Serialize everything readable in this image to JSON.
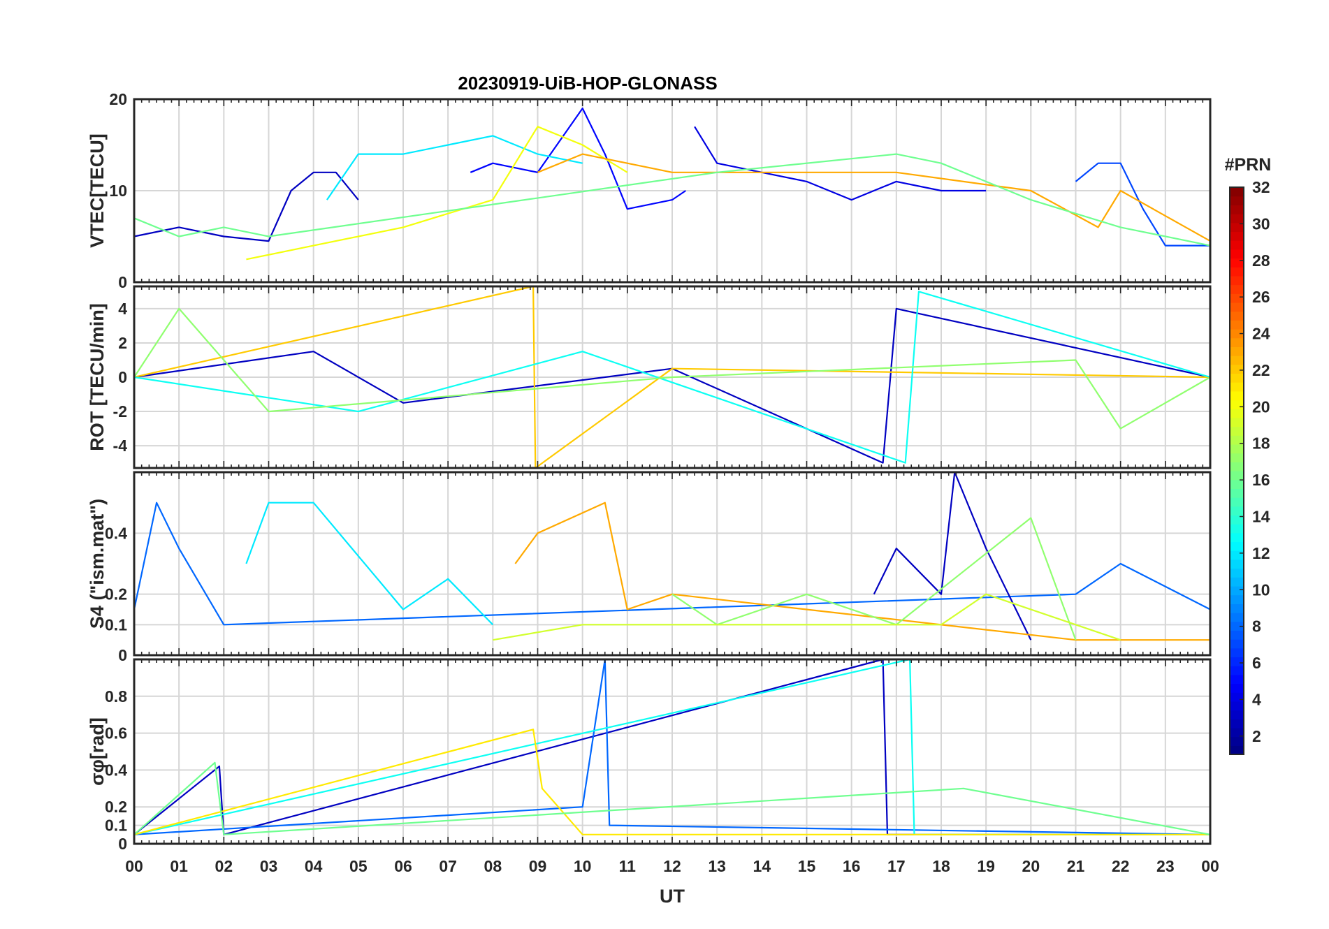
{
  "figure": {
    "title": "20230919-UiB-HOP-GLONASS",
    "xlabel": "UT",
    "x_tick_labels": [
      "00",
      "01",
      "02",
      "03",
      "04",
      "05",
      "06",
      "07",
      "08",
      "09",
      "10",
      "11",
      "12",
      "13",
      "14",
      "15",
      "16",
      "17",
      "18",
      "19",
      "20",
      "21",
      "22",
      "23",
      "00"
    ]
  },
  "colorbar": {
    "title": "#PRN",
    "colormap": "jet",
    "range": [
      1,
      32
    ],
    "tick_labels": [
      "2",
      "4",
      "6",
      "8",
      "10",
      "12",
      "14",
      "16",
      "18",
      "20",
      "22",
      "24",
      "26",
      "28",
      "30",
      "32"
    ]
  },
  "chart_data": [
    {
      "type": "line",
      "panel": "VTEC",
      "ylabel": "VTEC[TECU]",
      "ylim": [
        0,
        20
      ],
      "y_tick_labels": [
        "0",
        "10",
        "20"
      ],
      "x_range_hours": [
        0,
        24
      ],
      "grid": true,
      "series": [
        {
          "prn": 3,
          "points": [
            [
              0,
              5
            ],
            [
              1,
              6
            ],
            [
              2,
              5
            ],
            [
              3,
              4.5
            ],
            [
              3.5,
              10
            ],
            [
              4,
              12
            ],
            [
              4.5,
              12
            ],
            [
              5,
              9
            ]
          ]
        },
        {
          "prn": 5,
          "points": [
            [
              7.5,
              12
            ],
            [
              8,
              13
            ],
            [
              9,
              12
            ],
            [
              10,
              19
            ],
            [
              10.5,
              14
            ],
            [
              11,
              8
            ],
            [
              12,
              9
            ],
            [
              12.3,
              10
            ]
          ]
        },
        {
          "prn": 4,
          "points": [
            [
              12.5,
              17
            ],
            [
              13,
              13
            ],
            [
              14,
              12
            ],
            [
              15,
              11
            ],
            [
              16,
              9
            ],
            [
              17,
              11
            ],
            [
              18,
              10
            ],
            [
              19,
              10
            ]
          ]
        },
        {
          "prn": 7,
          "points": [
            [
              21,
              11
            ],
            [
              21.5,
              13
            ],
            [
              22,
              13
            ],
            [
              22.5,
              8
            ],
            [
              23,
              4
            ],
            [
              24,
              4
            ]
          ]
        },
        {
          "prn": 12,
          "points": [
            [
              4.3,
              9
            ],
            [
              5,
              14
            ],
            [
              6,
              14
            ],
            [
              7,
              15
            ],
            [
              8,
              16
            ],
            [
              9,
              14
            ],
            [
              10,
              13
            ]
          ]
        },
        {
          "prn": 20,
          "points": [
            [
              2.5,
              2.5
            ],
            [
              4,
              4
            ],
            [
              6,
              6
            ],
            [
              8,
              9
            ],
            [
              9,
              17
            ],
            [
              10,
              15
            ],
            [
              11,
              12
            ]
          ]
        },
        {
          "prn": 23,
          "points": [
            [
              9,
              12
            ],
            [
              10,
              14
            ],
            [
              11,
              13
            ],
            [
              12,
              12
            ],
            [
              17,
              12
            ],
            [
              20,
              10
            ],
            [
              21.5,
              6
            ],
            [
              22,
              10
            ],
            [
              24,
              4.5
            ]
          ]
        },
        {
          "prn": 16,
          "points": [
            [
              0,
              7
            ],
            [
              1,
              5
            ],
            [
              2,
              6
            ],
            [
              3,
              5
            ],
            [
              13,
              12
            ],
            [
              17,
              14
            ],
            [
              18,
              13
            ],
            [
              19,
              11
            ],
            [
              20,
              9
            ],
            [
              22,
              6
            ],
            [
              24,
              4
            ]
          ]
        }
      ]
    },
    {
      "type": "line",
      "panel": "ROT",
      "ylabel": "ROT [TECU/min]",
      "ylim": [
        -5.3,
        5.3
      ],
      "y_tick_labels": [
        "-4",
        "-2",
        "0",
        "2",
        "4"
      ],
      "x_range_hours": [
        0,
        24
      ],
      "grid": true,
      "series": [
        {
          "prn": 3,
          "points": [
            [
              0,
              0
            ],
            [
              4,
              1.5
            ],
            [
              6,
              -1.5
            ],
            [
              12,
              0.5
            ],
            [
              16.7,
              -5
            ],
            [
              17,
              4
            ],
            [
              24,
              0
            ]
          ]
        },
        {
          "prn": 22,
          "points": [
            [
              0,
              0
            ],
            [
              8.9,
              5.3
            ],
            [
              8.95,
              -5.3
            ],
            [
              12,
              0.5
            ],
            [
              24,
              0
            ]
          ]
        },
        {
          "prn": 13,
          "points": [
            [
              0,
              0
            ],
            [
              5,
              -2
            ],
            [
              10,
              1.5
            ],
            [
              17.2,
              -5
            ],
            [
              17.5,
              5
            ],
            [
              24,
              0
            ]
          ]
        },
        {
          "prn": 17,
          "points": [
            [
              0,
              0
            ],
            [
              1,
              4
            ],
            [
              3,
              -2
            ],
            [
              12,
              0
            ],
            [
              21,
              1
            ],
            [
              22,
              -3
            ],
            [
              24,
              0
            ]
          ]
        }
      ]
    },
    {
      "type": "line",
      "panel": "S4",
      "ylabel": "S4 (\"ism.mat\")",
      "ylim": [
        0,
        0.6
      ],
      "y_tick_labels": [
        "0",
        "0.1",
        "0.2",
        "0.4"
      ],
      "x_range_hours": [
        0,
        24
      ],
      "grid": true,
      "series": [
        {
          "prn": 8,
          "points": [
            [
              0,
              0.15
            ],
            [
              0.5,
              0.5
            ],
            [
              1,
              0.35
            ],
            [
              2,
              0.1
            ],
            [
              21,
              0.2
            ],
            [
              22,
              0.3
            ],
            [
              24,
              0.15
            ]
          ]
        },
        {
          "prn": 3,
          "points": [
            [
              16.5,
              0.2
            ],
            [
              17,
              0.35
            ],
            [
              18,
              0.2
            ],
            [
              18.3,
              0.6
            ],
            [
              19,
              0.35
            ],
            [
              20,
              0.05
            ]
          ]
        },
        {
          "prn": 23,
          "points": [
            [
              8.5,
              0.3
            ],
            [
              9,
              0.4
            ],
            [
              10.5,
              0.5
            ],
            [
              11,
              0.15
            ],
            [
              12,
              0.2
            ],
            [
              21,
              0.05
            ],
            [
              24,
              0.05
            ]
          ]
        },
        {
          "prn": 12,
          "points": [
            [
              2.5,
              0.3
            ],
            [
              3,
              0.5
            ],
            [
              4,
              0.5
            ],
            [
              6,
              0.15
            ],
            [
              7,
              0.25
            ],
            [
              8,
              0.1
            ]
          ]
        },
        {
          "prn": 17,
          "points": [
            [
              12,
              0.2
            ],
            [
              13,
              0.1
            ],
            [
              15,
              0.2
            ],
            [
              17,
              0.1
            ],
            [
              20,
              0.45
            ],
            [
              21,
              0.05
            ]
          ]
        },
        {
          "prn": 19,
          "points": [
            [
              8,
              0.05
            ],
            [
              10,
              0.1
            ],
            [
              14,
              0.1
            ],
            [
              18,
              0.1
            ],
            [
              19,
              0.2
            ],
            [
              22,
              0.05
            ]
          ]
        }
      ]
    },
    {
      "type": "line",
      "panel": "sigma_phi",
      "ylabel": "σφ[rad]",
      "ylim": [
        0,
        1
      ],
      "y_tick_labels": [
        "0",
        "0.1",
        "0.2",
        "0.4",
        "0.6",
        "0.8"
      ],
      "x_range_hours": [
        0,
        24
      ],
      "grid": true,
      "series": [
        {
          "prn": 3,
          "points": [
            [
              0,
              0.05
            ],
            [
              1.9,
              0.42
            ],
            [
              2,
              0.05
            ],
            [
              16.7,
              1.0
            ],
            [
              16.8,
              0.05
            ],
            [
              24,
              0.05
            ]
          ]
        },
        {
          "prn": 8,
          "points": [
            [
              0,
              0.05
            ],
            [
              10,
              0.2
            ],
            [
              10.5,
              1.0
            ],
            [
              10.6,
              0.1
            ],
            [
              24,
              0.05
            ]
          ]
        },
        {
          "prn": 13,
          "points": [
            [
              0,
              0.05
            ],
            [
              17.3,
              1.0
            ],
            [
              17.4,
              0.05
            ],
            [
              24,
              0.05
            ]
          ]
        },
        {
          "prn": 21,
          "points": [
            [
              0,
              0.05
            ],
            [
              8.9,
              0.62
            ],
            [
              9.1,
              0.3
            ],
            [
              10,
              0.05
            ],
            [
              24,
              0.05
            ]
          ]
        },
        {
          "prn": 16,
          "points": [
            [
              0,
              0.05
            ],
            [
              1.8,
              0.44
            ],
            [
              2,
              0.05
            ],
            [
              18.5,
              0.3
            ],
            [
              24,
              0.05
            ]
          ]
        }
      ]
    }
  ]
}
